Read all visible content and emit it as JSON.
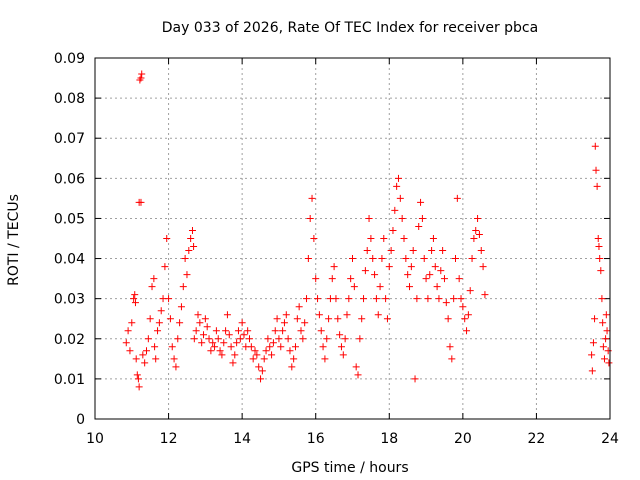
{
  "chart_data": {
    "type": "scatter",
    "title": "Day 033 of 2026, Rate Of TEC Index for receiver pbca",
    "xlabel": "GPS time / hours",
    "ylabel": "ROTI / TECUs",
    "xlim": [
      10,
      24
    ],
    "ylim": [
      0,
      0.09
    ],
    "xticks": [
      "10",
      "12",
      "14",
      "16",
      "18",
      "20",
      "22",
      "24"
    ],
    "yticks": [
      "0",
      "0.01",
      "0.02",
      "0.03",
      "0.04",
      "0.05",
      "0.06",
      "0.07",
      "0.08",
      "0.09"
    ],
    "grid": true,
    "marker": "+",
    "color": "#ff0000",
    "series": [
      {
        "points": [
          [
            10.85,
            0.019
          ],
          [
            10.9,
            0.022
          ],
          [
            10.95,
            0.017
          ],
          [
            11.0,
            0.024
          ],
          [
            11.05,
            0.03
          ],
          [
            11.08,
            0.031
          ],
          [
            11.1,
            0.029
          ],
          [
            11.12,
            0.015
          ],
          [
            11.15,
            0.011
          ],
          [
            11.18,
            0.01
          ],
          [
            11.2,
            0.008
          ],
          [
            11.22,
            0.0845
          ],
          [
            11.25,
            0.085
          ],
          [
            11.27,
            0.086
          ],
          [
            11.2,
            0.054
          ],
          [
            11.25,
            0.054
          ],
          [
            11.3,
            0.016
          ],
          [
            11.35,
            0.014
          ],
          [
            11.4,
            0.017
          ],
          [
            11.45,
            0.02
          ],
          [
            11.5,
            0.025
          ],
          [
            11.55,
            0.033
          ],
          [
            11.6,
            0.035
          ],
          [
            11.62,
            0.018
          ],
          [
            11.65,
            0.015
          ],
          [
            11.7,
            0.022
          ],
          [
            11.75,
            0.024
          ],
          [
            11.8,
            0.027
          ],
          [
            11.85,
            0.03
          ],
          [
            11.9,
            0.038
          ],
          [
            11.95,
            0.045
          ],
          [
            12.0,
            0.03
          ],
          [
            12.05,
            0.025
          ],
          [
            12.1,
            0.018
          ],
          [
            12.15,
            0.015
          ],
          [
            12.2,
            0.013
          ],
          [
            12.25,
            0.02
          ],
          [
            12.3,
            0.024
          ],
          [
            12.35,
            0.028
          ],
          [
            12.4,
            0.033
          ],
          [
            12.45,
            0.04
          ],
          [
            12.5,
            0.036
          ],
          [
            12.55,
            0.042
          ],
          [
            12.6,
            0.045
          ],
          [
            12.65,
            0.047
          ],
          [
            12.68,
            0.043
          ],
          [
            12.7,
            0.02
          ],
          [
            12.75,
            0.022
          ],
          [
            12.8,
            0.026
          ],
          [
            12.85,
            0.024
          ],
          [
            12.9,
            0.019
          ],
          [
            12.95,
            0.021
          ],
          [
            13.0,
            0.025
          ],
          [
            13.05,
            0.023
          ],
          [
            13.1,
            0.02
          ],
          [
            13.15,
            0.017
          ],
          [
            13.2,
            0.019
          ],
          [
            13.25,
            0.018
          ],
          [
            13.3,
            0.022
          ],
          [
            13.35,
            0.02
          ],
          [
            13.4,
            0.017
          ],
          [
            13.45,
            0.016
          ],
          [
            13.5,
            0.019
          ],
          [
            13.55,
            0.022
          ],
          [
            13.6,
            0.026
          ],
          [
            13.65,
            0.021
          ],
          [
            13.7,
            0.018
          ],
          [
            13.75,
            0.014
          ],
          [
            13.8,
            0.016
          ],
          [
            13.85,
            0.019
          ],
          [
            13.9,
            0.022
          ],
          [
            13.95,
            0.02
          ],
          [
            14.0,
            0.024
          ],
          [
            14.05,
            0.021
          ],
          [
            14.1,
            0.018
          ],
          [
            14.15,
            0.022
          ],
          [
            14.2,
            0.02
          ],
          [
            14.25,
            0.018
          ],
          [
            14.3,
            0.015
          ],
          [
            14.35,
            0.017
          ],
          [
            14.4,
            0.016
          ],
          [
            14.45,
            0.013
          ],
          [
            14.5,
            0.01
          ],
          [
            14.55,
            0.012
          ],
          [
            14.6,
            0.015
          ],
          [
            14.65,
            0.017
          ],
          [
            14.7,
            0.02
          ],
          [
            14.75,
            0.018
          ],
          [
            14.8,
            0.016
          ],
          [
            14.85,
            0.019
          ],
          [
            14.9,
            0.022
          ],
          [
            14.95,
            0.025
          ],
          [
            15.0,
            0.02
          ],
          [
            15.05,
            0.018
          ],
          [
            15.1,
            0.022
          ],
          [
            15.15,
            0.024
          ],
          [
            15.2,
            0.026
          ],
          [
            15.25,
            0.02
          ],
          [
            15.3,
            0.017
          ],
          [
            15.35,
            0.013
          ],
          [
            15.4,
            0.015
          ],
          [
            15.45,
            0.018
          ],
          [
            15.5,
            0.025
          ],
          [
            15.55,
            0.028
          ],
          [
            15.6,
            0.022
          ],
          [
            15.65,
            0.02
          ],
          [
            15.7,
            0.024
          ],
          [
            15.75,
            0.03
          ],
          [
            15.8,
            0.04
          ],
          [
            15.85,
            0.05
          ],
          [
            15.9,
            0.055
          ],
          [
            15.95,
            0.045
          ],
          [
            16.0,
            0.035
          ],
          [
            16.05,
            0.03
          ],
          [
            16.1,
            0.026
          ],
          [
            16.15,
            0.022
          ],
          [
            16.2,
            0.018
          ],
          [
            16.25,
            0.015
          ],
          [
            16.3,
            0.02
          ],
          [
            16.35,
            0.025
          ],
          [
            16.4,
            0.03
          ],
          [
            16.45,
            0.035
          ],
          [
            16.5,
            0.038
          ],
          [
            16.55,
            0.03
          ],
          [
            16.6,
            0.025
          ],
          [
            16.65,
            0.021
          ],
          [
            16.7,
            0.018
          ],
          [
            16.75,
            0.016
          ],
          [
            16.8,
            0.02
          ],
          [
            16.85,
            0.026
          ],
          [
            16.9,
            0.03
          ],
          [
            16.95,
            0.035
          ],
          [
            17.0,
            0.04
          ],
          [
            17.05,
            0.033
          ],
          [
            17.1,
            0.013
          ],
          [
            17.15,
            0.011
          ],
          [
            17.2,
            0.02
          ],
          [
            17.25,
            0.025
          ],
          [
            17.3,
            0.03
          ],
          [
            17.35,
            0.037
          ],
          [
            17.4,
            0.042
          ],
          [
            17.45,
            0.05
          ],
          [
            17.5,
            0.045
          ],
          [
            17.55,
            0.04
          ],
          [
            17.6,
            0.036
          ],
          [
            17.65,
            0.03
          ],
          [
            17.7,
            0.026
          ],
          [
            17.75,
            0.033
          ],
          [
            17.8,
            0.04
          ],
          [
            17.85,
            0.045
          ],
          [
            17.9,
            0.03
          ],
          [
            17.95,
            0.025
          ],
          [
            18.0,
            0.038
          ],
          [
            18.05,
            0.042
          ],
          [
            18.1,
            0.047
          ],
          [
            18.15,
            0.052
          ],
          [
            18.2,
            0.058
          ],
          [
            18.25,
            0.06
          ],
          [
            18.3,
            0.055
          ],
          [
            18.35,
            0.05
          ],
          [
            18.4,
            0.045
          ],
          [
            18.45,
            0.04
          ],
          [
            18.5,
            0.036
          ],
          [
            18.55,
            0.033
          ],
          [
            18.6,
            0.038
          ],
          [
            18.65,
            0.042
          ],
          [
            18.7,
            0.01
          ],
          [
            18.75,
            0.03
          ],
          [
            18.8,
            0.048
          ],
          [
            18.85,
            0.054
          ],
          [
            18.9,
            0.05
          ],
          [
            18.95,
            0.04
          ],
          [
            19.0,
            0.035
          ],
          [
            19.05,
            0.03
          ],
          [
            19.1,
            0.036
          ],
          [
            19.15,
            0.042
          ],
          [
            19.2,
            0.045
          ],
          [
            19.25,
            0.038
          ],
          [
            19.3,
            0.033
          ],
          [
            19.35,
            0.03
          ],
          [
            19.4,
            0.037
          ],
          [
            19.45,
            0.042
          ],
          [
            19.5,
            0.035
          ],
          [
            19.55,
            0.029
          ],
          [
            19.6,
            0.025
          ],
          [
            19.65,
            0.018
          ],
          [
            19.7,
            0.015
          ],
          [
            19.75,
            0.03
          ],
          [
            19.8,
            0.04
          ],
          [
            19.85,
            0.055
          ],
          [
            19.9,
            0.035
          ],
          [
            19.95,
            0.03
          ],
          [
            20.0,
            0.028
          ],
          [
            20.05,
            0.025
          ],
          [
            20.1,
            0.022
          ],
          [
            20.15,
            0.026
          ],
          [
            20.2,
            0.032
          ],
          [
            20.25,
            0.04
          ],
          [
            20.3,
            0.045
          ],
          [
            20.35,
            0.047
          ],
          [
            20.4,
            0.05
          ],
          [
            20.45,
            0.046
          ],
          [
            20.5,
            0.042
          ],
          [
            20.55,
            0.038
          ],
          [
            20.6,
            0.031
          ],
          [
            23.5,
            0.016
          ],
          [
            23.52,
            0.012
          ],
          [
            23.55,
            0.019
          ],
          [
            23.58,
            0.025
          ],
          [
            23.6,
            0.068
          ],
          [
            23.62,
            0.062
          ],
          [
            23.65,
            0.058
          ],
          [
            23.68,
            0.045
          ],
          [
            23.7,
            0.043
          ],
          [
            23.72,
            0.04
          ],
          [
            23.75,
            0.037
          ],
          [
            23.78,
            0.03
          ],
          [
            23.8,
            0.024
          ],
          [
            23.82,
            0.018
          ],
          [
            23.85,
            0.015
          ],
          [
            23.88,
            0.02
          ],
          [
            23.9,
            0.026
          ],
          [
            23.92,
            0.022
          ],
          [
            23.95,
            0.017
          ],
          [
            23.97,
            0.014
          ]
        ]
      }
    ]
  }
}
